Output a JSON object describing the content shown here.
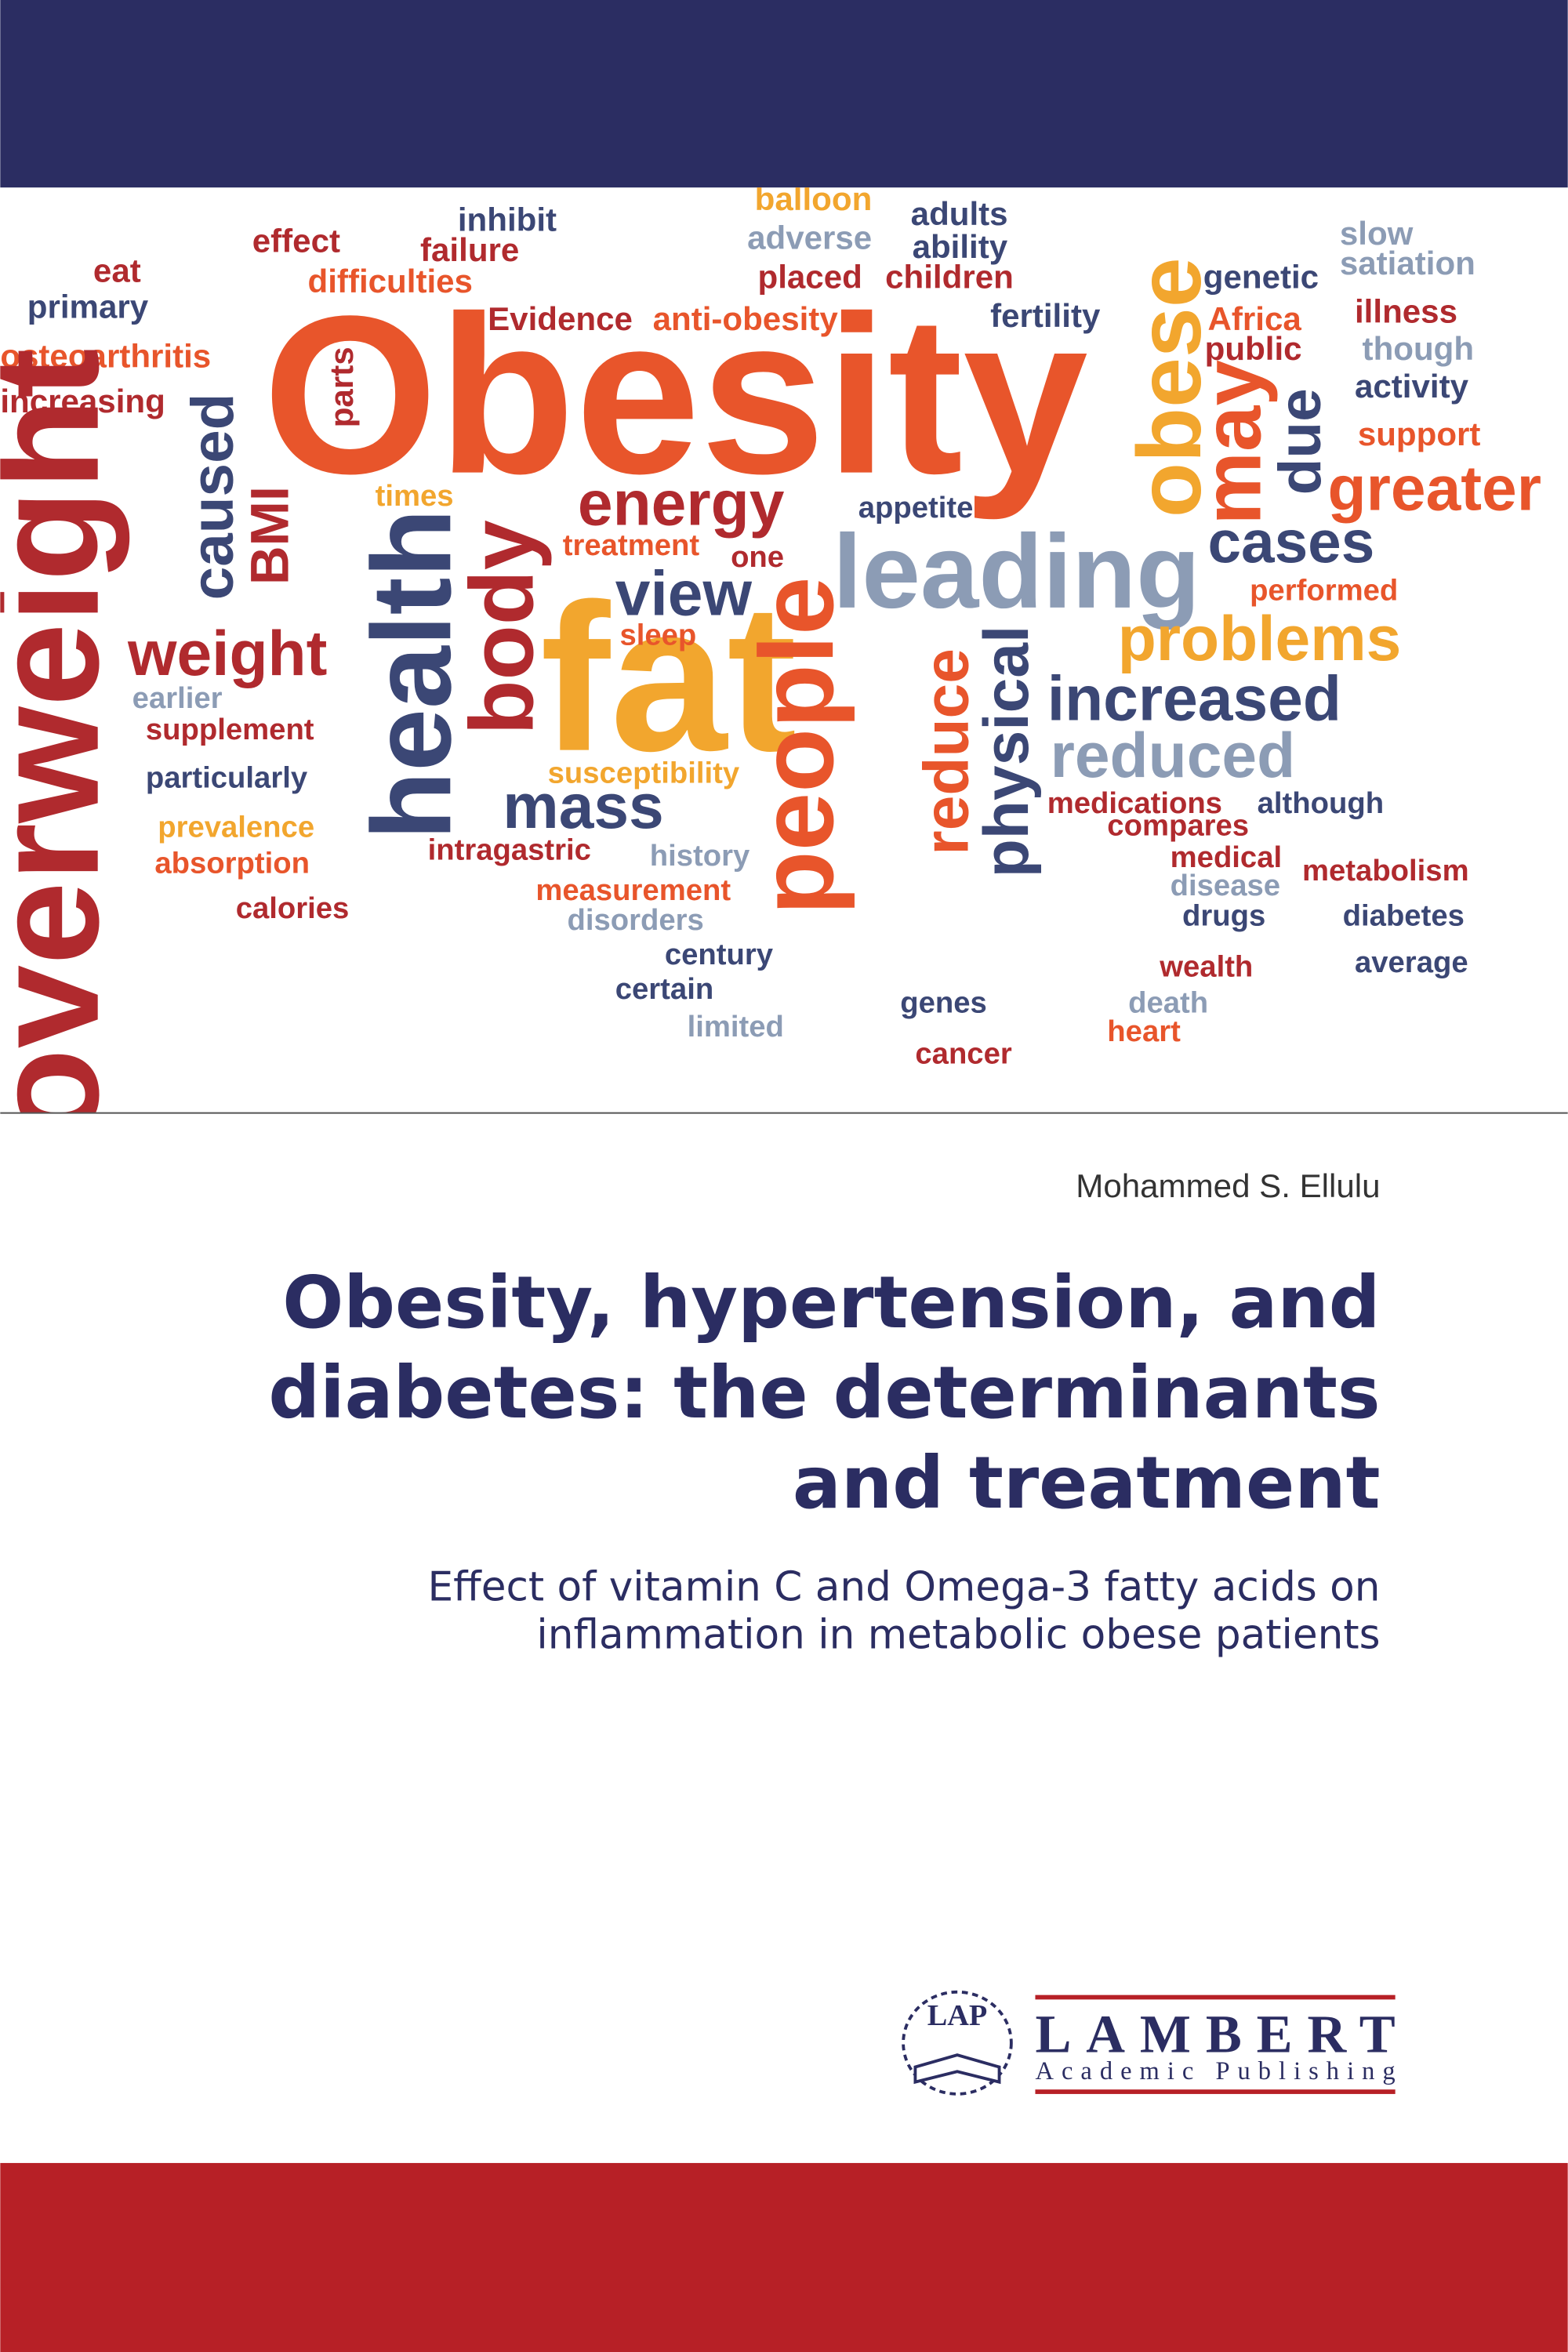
{
  "cover": {
    "word_cloud": [
      "Obesity",
      "fat",
      "leading",
      "energy",
      "view",
      "weight",
      "mass",
      "increased",
      "reduced",
      "problems",
      "cases",
      "greater",
      "effect",
      "failure",
      "difficulties",
      "Evidence",
      "anti-obesity",
      "balloon",
      "adverse",
      "placed",
      "children",
      "adults",
      "ability",
      "fertility",
      "genetic",
      "slow",
      "satiation",
      "illness",
      "though",
      "activity",
      "support",
      "Africa",
      "public",
      "eat",
      "primary",
      "osteoarthritis",
      "increasing",
      "inhibit",
      "times",
      "treatment",
      "one",
      "appetite",
      "sleep",
      "earlier",
      "supplement",
      "particularly",
      "prevalence",
      "absorption",
      "calories",
      "susceptibility",
      "intragastric",
      "history",
      "measurement",
      "disorders",
      "century",
      "certain",
      "limited",
      "medications",
      "although",
      "compares",
      "medical",
      "metabolism",
      "disease",
      "drugs",
      "diabetes",
      "wealth",
      "average",
      "death",
      "heart",
      "genes",
      "cancer",
      "performed",
      "overweight",
      "health",
      "body",
      "people",
      "physical",
      "reduce",
      "obese",
      "may",
      "due",
      "caused",
      "BMI",
      "parts"
    ],
    "author": "Mohammed S. Ellulu",
    "title": [
      "Obesity, hypertension, and",
      "diabetes: the determinants",
      "and treatment"
    ],
    "subtitle": [
      "Effect of vitamin C and Omega-3 fatty acids on",
      "inflammation in metabolic obese patients"
    ],
    "publisher": {
      "logo": "LAP",
      "name": "LAMBERT",
      "tagline": "Academic Publishing"
    }
  }
}
